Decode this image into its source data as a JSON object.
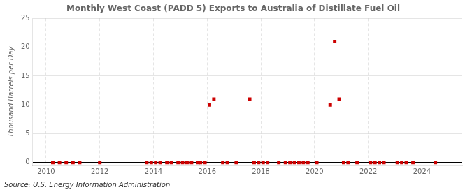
{
  "chart_data": {
    "type": "scatter",
    "title": "Monthly West Coast (PADD 5) Exports to Australia of Distillate Fuel Oil",
    "ylabel": "Thousand Barrels per Day",
    "annotation": "Source: U.S. Energy Information Administration",
    "color": "#cc0000",
    "marker": "square",
    "grid": true,
    "xlim": [
      2009.5,
      2025.5
    ],
    "ylim": [
      -0.5,
      25
    ],
    "xticks": [
      2010,
      2012,
      2014,
      2016,
      2018,
      2020,
      2022,
      2024
    ],
    "yticks": [
      0,
      5,
      10,
      15,
      20,
      25
    ],
    "x": [
      2010.25,
      2010.5,
      2010.75,
      2011.0,
      2011.25,
      2012.0,
      2013.75,
      2013.9167,
      2014.0833,
      2014.25,
      2014.5,
      2014.6667,
      2014.9167,
      2015.0833,
      2015.25,
      2015.4167,
      2015.6667,
      2015.75,
      2015.9167,
      2016.0833,
      2016.25,
      2016.5833,
      2016.75,
      2017.0833,
      2017.5833,
      2017.75,
      2017.9167,
      2018.0833,
      2018.25,
      2018.6667,
      2018.9167,
      2019.0833,
      2019.25,
      2019.4167,
      2019.5833,
      2019.75,
      2020.0833,
      2020.5833,
      2020.75,
      2020.9167,
      2021.0833,
      2021.25,
      2021.5833,
      2022.0833,
      2022.25,
      2022.4167,
      2022.5833,
      2023.0833,
      2023.25,
      2023.4167,
      2023.6667,
      2024.5
    ],
    "values": [
      0,
      0,
      0,
      0,
      0,
      0,
      0,
      0,
      0,
      0,
      0,
      0,
      0,
      0,
      0,
      0,
      0,
      0,
      0,
      10,
      11,
      0,
      0,
      0,
      11,
      0,
      0,
      0,
      0,
      0,
      0,
      0,
      0,
      0,
      0,
      0,
      0,
      10,
      21,
      11,
      0,
      0,
      0,
      0,
      0,
      0,
      0,
      0,
      0,
      0,
      0,
      0
    ]
  }
}
